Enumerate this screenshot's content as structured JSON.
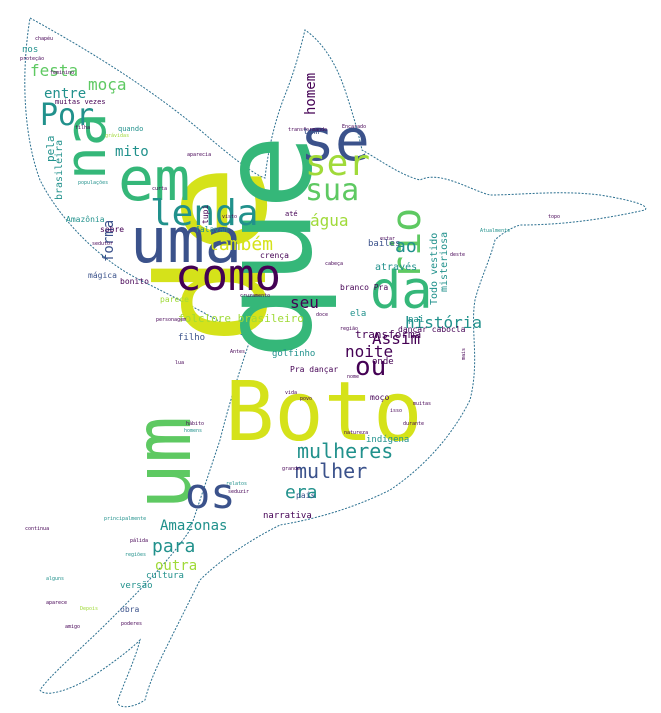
{
  "palette": {
    "background": "#ffffff",
    "outline": "#2a6f8f",
    "dark_purple": "#440154",
    "indigo": "#3b528b",
    "teal": "#21918c",
    "green": "#5ec962",
    "emerald": "#35b779",
    "yellow": "#d5e21a",
    "lime": "#a0da39"
  },
  "words": [
    {
      "text": "de",
      "weight": 100,
      "color": "yellow"
    },
    {
      "text": "que",
      "weight": 90,
      "color": "emerald"
    },
    {
      "text": "Boto",
      "weight": 85,
      "color": "yellow"
    },
    {
      "text": "um",
      "weight": 75,
      "color": "green"
    },
    {
      "text": "uma",
      "weight": 72,
      "color": "indigo"
    },
    {
      "text": "em",
      "weight": 70,
      "color": "emerald"
    },
    {
      "text": "na",
      "weight": 62,
      "color": "emerald"
    },
    {
      "text": "se",
      "weight": 62,
      "color": "indigo"
    },
    {
      "text": "da",
      "weight": 58,
      "color": "emerald"
    },
    {
      "text": "como",
      "weight": 52,
      "color": "dark_purple"
    },
    {
      "text": "os",
      "weight": 50,
      "color": "indigo"
    },
    {
      "text": "lenda",
      "weight": 44,
      "color": "teal"
    },
    {
      "text": "rio",
      "weight": 42,
      "color": "green"
    },
    {
      "text": "ser",
      "weight": 40,
      "color": "lime"
    },
    {
      "text": "sua",
      "weight": 38,
      "color": "green"
    },
    {
      "text": "Por",
      "weight": 34,
      "color": "teal"
    },
    {
      "text": "ou",
      "weight": 30,
      "color": "dark_purple"
    },
    {
      "text": "mulheres",
      "weight": 28,
      "color": "teal"
    },
    {
      "text": "mulher",
      "weight": 26,
      "color": "indigo"
    },
    {
      "text": "ao",
      "weight": 24,
      "color": "teal"
    },
    {
      "text": "para",
      "weight": 24,
      "color": "teal"
    },
    {
      "text": "era",
      "weight": 22,
      "color": "teal"
    },
    {
      "text": "também",
      "weight": 22,
      "color": "yellow"
    },
    {
      "text": "água",
      "weight": 22,
      "color": "lime"
    },
    {
      "text": "forma",
      "weight": 20,
      "color": "indigo"
    },
    {
      "text": "festa",
      "weight": 20,
      "color": "green"
    },
    {
      "text": "noite",
      "weight": 20,
      "color": "dark_purple"
    },
    {
      "text": "história",
      "weight": 20,
      "color": "teal"
    },
    {
      "text": "Assim",
      "weight": 18,
      "color": "dark_purple"
    },
    {
      "text": "seu",
      "weight": 18,
      "color": "dark_purple"
    },
    {
      "text": "homem",
      "weight": 18,
      "color": "dark_purple"
    },
    {
      "text": "moça",
      "weight": 18,
      "color": "green"
    },
    {
      "text": "entre",
      "weight": 18,
      "color": "teal"
    },
    {
      "text": "Amazonas",
      "weight": 16,
      "color": "teal"
    },
    {
      "text": "outra",
      "weight": 16,
      "color": "lime"
    },
    {
      "text": "mito",
      "weight": 14,
      "color": "teal"
    },
    {
      "text": "folclore brasileiro",
      "weight": 13,
      "color": "lime"
    },
    {
      "text": "transforma",
      "weight": 13,
      "color": "dark_purple"
    },
    {
      "text": "pela",
      "weight": 13,
      "color": "teal"
    },
    {
      "text": "brasileira",
      "weight": 12,
      "color": "teal"
    },
    {
      "text": "Todo vestido",
      "weight": 12,
      "color": "teal"
    },
    {
      "text": "através",
      "weight": 12,
      "color": "teal"
    },
    {
      "text": "misteriosa",
      "weight": 12,
      "color": "teal"
    },
    {
      "text": "indígena",
      "weight": 11,
      "color": "teal"
    },
    {
      "text": "narrativa",
      "weight": 11,
      "color": "dark_purple"
    },
    {
      "text": "onde",
      "weight": 11,
      "color": "dark_purple"
    },
    {
      "text": "bailes",
      "weight": 11,
      "color": "indigo"
    },
    {
      "text": "pai",
      "weight": 11,
      "color": "teal"
    },
    {
      "text": "tem",
      "weight": 11,
      "color": "indigo"
    },
    {
      "text": "filho",
      "weight": 10,
      "color": "indigo"
    },
    {
      "text": "golfinho",
      "weight": 10,
      "color": "teal"
    },
    {
      "text": "cultura",
      "weight": 10,
      "color": "teal"
    },
    {
      "text": "versão",
      "weight": 10,
      "color": "teal"
    },
    {
      "text": "ela",
      "weight": 10,
      "color": "teal"
    },
    {
      "text": "nos",
      "weight": 10,
      "color": "teal"
    },
    {
      "text": "Amazônia",
      "weight": 9,
      "color": "teal"
    },
    {
      "text": "sobre",
      "weight": 9,
      "color": "dark_purple"
    },
    {
      "text": "mágica",
      "weight": 9,
      "color": "indigo"
    },
    {
      "text": "bonito",
      "weight": 9,
      "color": "dark_purple"
    },
    {
      "text": "falavam",
      "weight": 9,
      "color": "teal"
    },
    {
      "text": "crença",
      "weight": 9,
      "color": "dark_purple"
    },
    {
      "text": "parece",
      "weight": 9,
      "color": "lime"
    },
    {
      "text": "branco Pra",
      "weight": 9,
      "color": "dark_purple"
    },
    {
      "text": "dançar cabocla",
      "weight": 8,
      "color": "dark_purple"
    },
    {
      "text": "Pra dançar",
      "weight": 8,
      "color": "dark_purple"
    },
    {
      "text": "tupi",
      "weight": 8,
      "color": "dark_purple"
    },
    {
      "text": "obra",
      "weight": 8,
      "color": "indigo"
    },
    {
      "text": "país",
      "weight": 8,
      "color": "indigo"
    },
    {
      "text": "moço",
      "weight": 8,
      "color": "dark_purple"
    },
    {
      "text": "muitas vezes",
      "weight": 7,
      "color": "dark_purple"
    },
    {
      "text": "quando",
      "weight": 7,
      "color": "teal"
    },
    {
      "text": "até",
      "weight": 7,
      "color": "dark_purple"
    },
    {
      "text": "visto",
      "weight": 6,
      "color": "dark_purple"
    },
    {
      "text": "cruzamento",
      "weight": 6,
      "color": "dark_purple"
    },
    {
      "text": "personagem",
      "weight": 6,
      "color": "dark_purple"
    },
    {
      "text": "deste",
      "weight": 6,
      "color": "dark_purple"
    },
    {
      "text": "durante",
      "weight": 6,
      "color": "dark_purple"
    },
    {
      "text": "estar",
      "weight": 6,
      "color": "dark_purple"
    },
    {
      "text": "populações",
      "weight": 6,
      "color": "teal"
    },
    {
      "text": "transformando",
      "weight": 6,
      "color": "dark_purple"
    },
    {
      "text": "Atualmente",
      "weight": 6,
      "color": "teal"
    },
    {
      "text": "curta",
      "weight": 6,
      "color": "dark_purple"
    },
    {
      "text": "regiões",
      "weight": 5,
      "color": "teal"
    },
    {
      "text": "principalmente",
      "weight": 5,
      "color": "teal"
    },
    {
      "text": "homens",
      "weight": 5,
      "color": "teal"
    },
    {
      "text": "cabeça",
      "weight": 5,
      "color": "dark_purple"
    },
    {
      "text": "natureza",
      "weight": 5,
      "color": "dark_purple"
    },
    {
      "text": "hábito",
      "weight": 5,
      "color": "dark_purple"
    },
    {
      "text": "Antes",
      "weight": 5,
      "color": "dark_purple"
    },
    {
      "text": "sedutor",
      "weight": 5,
      "color": "dark_purple"
    },
    {
      "text": "proteção",
      "weight": 5,
      "color": "dark_purple"
    },
    {
      "text": "filha",
      "weight": 5,
      "color": "dark_purple"
    },
    {
      "text": "Encarado",
      "weight": 5,
      "color": "dark_purple"
    },
    {
      "text": "continua",
      "weight": 5,
      "color": "dark_purple"
    },
    {
      "text": "chapéu",
      "weight": 4,
      "color": "dark_purple"
    },
    {
      "text": "feminino",
      "weight": 4,
      "color": "dark_purple"
    },
    {
      "text": "topo",
      "weight": 4,
      "color": "dark_purple"
    },
    {
      "text": "poderes",
      "weight": 4,
      "color": "dark_purple"
    },
    {
      "text": "seduzir",
      "weight": 4,
      "color": "dark_purple"
    },
    {
      "text": "pálida",
      "weight": 4,
      "color": "dark_purple"
    },
    {
      "text": "aparece",
      "weight": 4,
      "color": "dark_purple"
    },
    {
      "text": "alguns",
      "weight": 4,
      "color": "teal"
    },
    {
      "text": "relatos",
      "weight": 4,
      "color": "teal"
    },
    {
      "text": "grávidas",
      "weight": 4,
      "color": "lime"
    },
    {
      "text": "aparecia",
      "weight": 4,
      "color": "dark_purple"
    },
    {
      "text": "lua",
      "weight": 4,
      "color": "dark_purple"
    },
    {
      "text": "nome",
      "weight": 4,
      "color": "dark_purple"
    },
    {
      "text": "Depois",
      "weight": 4,
      "color": "lime"
    },
    {
      "text": "amigo",
      "weight": 4,
      "color": "dark_purple"
    },
    {
      "text": "povo",
      "weight": 4,
      "color": "dark_purple"
    },
    {
      "text": "grande",
      "weight": 4,
      "color": "dark_purple"
    },
    {
      "text": "isso",
      "weight": 4,
      "color": "dark_purple"
    },
    {
      "text": "doce",
      "weight": 4,
      "color": "dark_purple"
    },
    {
      "text": "região",
      "weight": 4,
      "color": "dark_purple"
    },
    {
      "text": "vida",
      "weight": 4,
      "color": "dark_purple"
    },
    {
      "text": "mais",
      "weight": 4,
      "color": "dark_purple"
    },
    {
      "text": "muitas",
      "weight": 4,
      "color": "dark_purple"
    },
    {
      "text": "essa",
      "weight": 4,
      "color": "dark_purple"
    },
    {
      "text": "dele",
      "weight": 4,
      "color": "lime"
    },
    {
      "text": "entidade",
      "weight": 4,
      "color": "green"
    },
    {
      "text": "assim",
      "weight": 4,
      "color": "lime"
    }
  ]
}
